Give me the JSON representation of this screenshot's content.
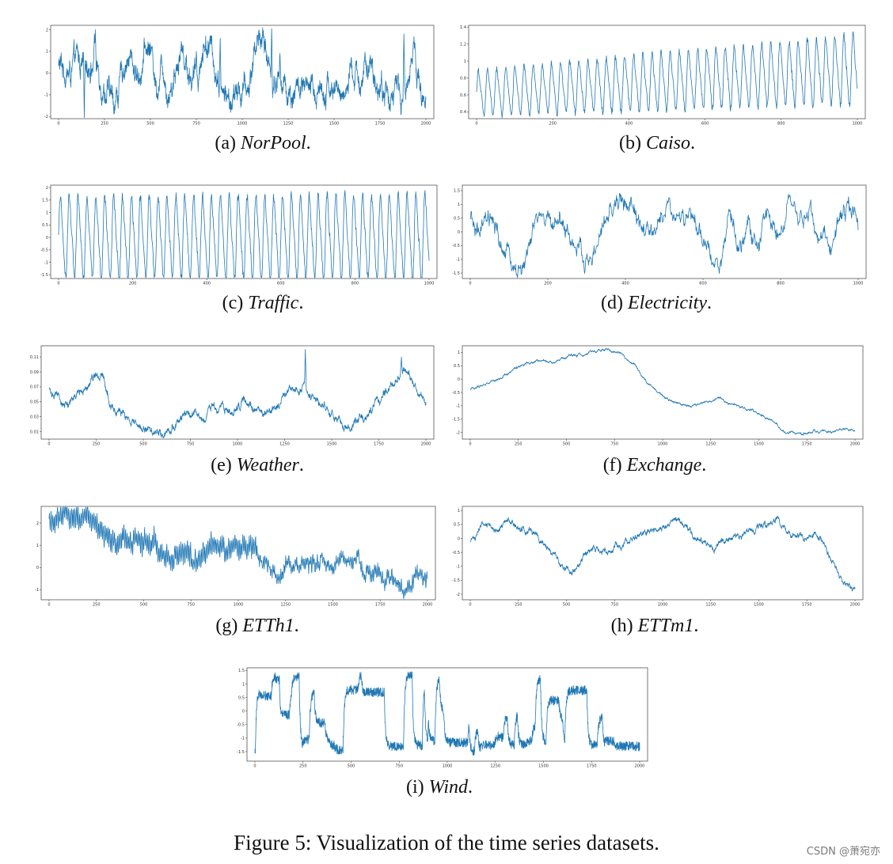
{
  "figure_caption": "Figure 5: Visualization of the time series datasets.",
  "watermark": "CSDN @萧宛亦",
  "chart_data": [
    {
      "type": "line",
      "id": "norpool",
      "label": "(a)",
      "name": "NorPool",
      "period": ".",
      "xticks": [
        0,
        250,
        500,
        750,
        1000,
        1250,
        1500,
        1750,
        2000
      ],
      "xlim": [
        0,
        2000
      ],
      "yticks": [
        -2,
        -1,
        0,
        1,
        2
      ],
      "ylim": [
        -2.1,
        2.2
      ],
      "color": "#1f77b4",
      "n": 2001,
      "base": [
        0.3,
        0.2,
        -0.1,
        0.5,
        0.1,
        0.6,
        0.3,
        -0.2,
        -0.9,
        -1.4,
        -0.6,
        0.8,
        0.5,
        -0.2,
        0.9,
        1.2,
        -0.5,
        0.6,
        -0.9,
        0.2,
        1.3,
        0.4,
        -0.3,
        0.3,
        1.6,
        0.9,
        -0.1,
        -1.0,
        -1.4,
        -1.1,
        -0.8,
        -0.9,
        1.1,
        1.9,
        0.9,
        -0.5,
        -0.3,
        -0.7,
        -0.9,
        -0.6,
        -1.0,
        -1.1,
        -0.9,
        -0.5,
        -0.4,
        -0.9,
        -1.0,
        -0.6,
        -0.3,
        -0.2,
        0.1,
        -0.2,
        -0.4,
        -0.9,
        -1.0,
        -0.8,
        -1.2,
        -0.7,
        1.5,
        -0.9,
        -1.1
      ],
      "spikes": [
        [
          200,
          2.0
        ],
        [
          195,
          1.8
        ],
        [
          140,
          -2.05
        ],
        [
          510,
          1.2
        ],
        [
          750,
          1.0
        ],
        [
          880,
          1.6
        ],
        [
          1160,
          2.05
        ],
        [
          1205,
          0.9
        ],
        [
          1880,
          1.8
        ],
        [
          1940,
          1.4
        ]
      ]
    },
    {
      "type": "line",
      "id": "caiso",
      "label": "(b)",
      "name": "Caiso",
      "period": ".",
      "xticks": [
        0,
        200,
        400,
        600,
        800,
        1000
      ],
      "xtick_labels": [
        "0",
        "200",
        "400",
        "600",
        "800",
        "1000"
      ],
      "xlim": [
        0,
        1000
      ],
      "yticks": [
        0.4,
        0.6,
        0.8,
        1.0,
        1.2,
        1.4
      ],
      "ylim": [
        0.32,
        1.42
      ],
      "color": "#1f77b4",
      "n": 1001,
      "mode": "periodic",
      "period_len": 24,
      "level_start": 0.62,
      "level_end": 0.9,
      "amp_start": 0.5,
      "amp_end": 0.75
    },
    {
      "type": "line",
      "id": "traffic",
      "label": "(c)",
      "name": "Traffic",
      "period": ".",
      "xticks": [
        0,
        200,
        400,
        600,
        800,
        1000
      ],
      "xlim": [
        0,
        1000
      ],
      "yticks": [
        -1.5,
        -1.0,
        -0.5,
        0.0,
        0.5,
        1.0,
        1.5,
        2.0
      ],
      "ylim": [
        -1.65,
        2.1
      ],
      "color": "#1f77b4",
      "n": 1001,
      "mode": "periodic",
      "period_len": 24,
      "level_start": 0.0,
      "level_end": 0.0,
      "amp_start": 3.0,
      "amp_end": 3.2
    },
    {
      "type": "line",
      "id": "electricity",
      "label": "(d)",
      "name": "Electricity",
      "period": ".",
      "xticks": [
        0,
        200,
        400,
        600,
        800,
        1000
      ],
      "xlim": [
        0,
        1000
      ],
      "yticks": [
        -1.5,
        -1.0,
        -0.5,
        0.0,
        0.5,
        1.0,
        1.5
      ],
      "ylim": [
        -1.7,
        1.7
      ],
      "color": "#1f77b4",
      "n": 1001,
      "base": [
        0.3,
        -0.2,
        0.2,
        -0.6,
        -1.2,
        -1.5,
        -0.6,
        0.4,
        0.2,
        0.6,
        -0.1,
        -1.0,
        -1.2,
        -0.4,
        0.6,
        1.1,
        0.9,
        0.2,
        -0.3,
        0.2,
        1.0,
        0.4,
        0.6,
        -0.3,
        -0.8,
        -1.0,
        0.1,
        -0.5,
        0.2,
        -0.6,
        0.6,
        0.3,
        0.9,
        -0.2,
        0.8,
        0.0,
        -0.8,
        0.3,
        1.2,
        0.4
      ],
      "noise": 0.45
    },
    {
      "type": "line",
      "id": "weather",
      "label": "(e)",
      "name": "Weather",
      "period": ".",
      "xticks": [
        0,
        250,
        500,
        750,
        1000,
        1250,
        1500,
        1750,
        2000
      ],
      "xlim": [
        0,
        2000
      ],
      "yticks": [
        0.01,
        0.03,
        0.05,
        0.07,
        0.09,
        0.11
      ],
      "ylim": [
        0.0,
        0.125
      ],
      "color": "#1f77b4",
      "n": 2001,
      "base": [
        0.067,
        0.055,
        0.045,
        0.05,
        0.062,
        0.075,
        0.092,
        0.085,
        0.05,
        0.035,
        0.028,
        0.02,
        0.015,
        0.012,
        0.01,
        0.01,
        0.015,
        0.025,
        0.03,
        0.032,
        0.03,
        0.04,
        0.045,
        0.04,
        0.035,
        0.045,
        0.05,
        0.04,
        0.035,
        0.04,
        0.05,
        0.055,
        0.065,
        0.07,
        0.06,
        0.05,
        0.04,
        0.03,
        0.02,
        0.015,
        0.02,
        0.03,
        0.04,
        0.055,
        0.065,
        0.08,
        0.095,
        0.08,
        0.06,
        0.055
      ],
      "noise": 0.006,
      "spikes": [
        [
          1360,
          0.12
        ],
        [
          1870,
          0.11
        ]
      ]
    },
    {
      "type": "line",
      "id": "exchange",
      "label": "(f)",
      "name": "Exchange",
      "period": ".",
      "xticks": [
        0,
        250,
        500,
        750,
        1000,
        1250,
        1500,
        1750,
        2000
      ],
      "xlim": [
        0,
        2000
      ],
      "yticks": [
        -2.0,
        -1.5,
        -1.0,
        -0.5,
        0.0,
        0.5,
        1.0
      ],
      "ylim": [
        -2.25,
        1.25
      ],
      "color": "#1f77b4",
      "n": 2001,
      "base": [
        -0.4,
        -0.2,
        0.0,
        0.3,
        0.6,
        0.7,
        0.6,
        0.8,
        0.9,
        1.05,
        1.1,
        0.95,
        0.5,
        -0.2,
        -0.6,
        -0.9,
        -1.0,
        -0.9,
        -0.7,
        -0.9,
        -1.1,
        -1.3,
        -1.6,
        -2.0,
        -2.1,
        -1.95,
        -2.0,
        -1.9,
        -1.9
      ],
      "noise": 0.05
    },
    {
      "type": "line",
      "id": "etth1",
      "label": "(g)",
      "name": "ETTh1",
      "period": ".",
      "xticks": [
        0,
        250,
        500,
        750,
        1000,
        1250,
        1500,
        1750,
        2000
      ],
      "xlim": [
        0,
        2000
      ],
      "yticks": [
        -1,
        0,
        1,
        2
      ],
      "ylim": [
        -1.45,
        2.75
      ],
      "color": "#1f77b4",
      "n": 2001,
      "base": [
        2.0,
        2.1,
        2.2,
        2.3,
        1.5,
        1.3,
        1.2,
        1.1,
        0.9,
        0.5,
        0.7,
        0.2,
        0.8,
        0.6,
        0.8,
        0.9,
        0.2,
        -0.6,
        0.3,
        0.0,
        0.2,
        0.0,
        0.4,
        0.0,
        -0.3,
        -0.4,
        -0.9,
        -0.5,
        -0.4
      ],
      "noise": 0.3,
      "wiggle": 0.35
    },
    {
      "type": "line",
      "id": "ettm1",
      "label": "(h)",
      "name": "ETTm1",
      "period": ".",
      "xticks": [
        0,
        250,
        500,
        750,
        1000,
        1250,
        1500,
        1750,
        2000
      ],
      "xlim": [
        0,
        2000
      ],
      "yticks": [
        -2.0,
        -1.5,
        -1.0,
        -0.5,
        0.0,
        0.5,
        1.0
      ],
      "ylim": [
        -2.2,
        1.15
      ],
      "color": "#1f77b4",
      "n": 2001,
      "base": [
        -0.2,
        0.5,
        0.3,
        0.7,
        0.4,
        0.2,
        -0.4,
        -0.9,
        -1.1,
        -0.6,
        -0.3,
        -0.5,
        -0.2,
        0.0,
        0.3,
        0.4,
        0.6,
        0.3,
        -0.1,
        -0.4,
        0.0,
        0.1,
        0.3,
        0.5,
        0.7,
        0.2,
        0.0,
        0.3,
        -0.6,
        -1.5,
        -1.8
      ],
      "noise": 0.12
    },
    {
      "type": "line",
      "id": "wind",
      "label": "(i)",
      "name": "Wind",
      "period": ".",
      "xticks": [
        0,
        250,
        500,
        750,
        1000,
        1250,
        1500,
        1750,
        2000
      ],
      "xlim": [
        0,
        2000
      ],
      "yticks": [
        -1.5,
        -1.0,
        -0.5,
        0.0,
        0.5,
        1.0,
        1.5
      ],
      "ylim": [
        -1.85,
        1.6
      ],
      "color": "#1f77b4",
      "n": 2001,
      "mode": "bursty"
    }
  ]
}
